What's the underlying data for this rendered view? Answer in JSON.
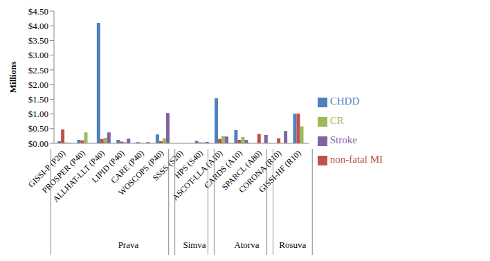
{
  "chart_data": {
    "type": "bar",
    "y_label": "Millions",
    "categories": [
      "GISSI-P (P20)",
      "PROSPER (P40)",
      "ALLHAT-LLT (P40)",
      "LIPID (P40)",
      "CARE (P40)",
      "WOSCOPS (P40)",
      "SSSS (S20)",
      "HPS (S40)",
      "ASCOT-LLA (A10)",
      "CARDS (A10)",
      "SPARCL (A80)",
      "CORONA (R10)",
      "GISSI-HF (R10)"
    ],
    "groups": [
      {
        "label": "Prava",
        "start": 0,
        "end": 5
      },
      {
        "label": "Simva",
        "start": 6,
        "end": 7
      },
      {
        "label": "Atorva",
        "start": 8,
        "end": 10
      },
      {
        "label": "Rosuva",
        "start": 11,
        "end": 12
      }
    ],
    "series": [
      {
        "name": "CHDD",
        "color": "#4F81BD",
        "values": [
          0.07,
          0.12,
          4.1,
          0.12,
          0.04,
          0.3,
          null,
          0.08,
          1.53,
          0.45,
          null,
          null,
          1.01
        ]
      },
      {
        "name": "non-fatal MI",
        "color": "#C0504D",
        "values": [
          0.47,
          0.1,
          0.15,
          0.06,
          0.01,
          0.07,
          null,
          0.03,
          0.15,
          0.12,
          0.32,
          0.17,
          1.01
        ]
      },
      {
        "name": "CR",
        "color": "#9BBB59",
        "values": [
          0.03,
          0.37,
          0.19,
          0.04,
          0.01,
          0.17,
          null,
          0.03,
          0.25,
          0.21,
          null,
          null,
          0.58
        ]
      },
      {
        "name": "Stroke",
        "color": "#8064A2",
        "values": [
          0.01,
          null,
          0.37,
          0.16,
          0.04,
          1.03,
          null,
          0.05,
          0.23,
          0.12,
          0.28,
          0.42,
          null
        ]
      }
    ],
    "ylim": [
      0,
      4.5
    ],
    "yticks": [
      {
        "value": 0,
        "label": "$0.00"
      },
      {
        "value": 0.5,
        "label": "$0.50"
      },
      {
        "value": 1,
        "label": "$1.00"
      },
      {
        "value": 1.5,
        "label": "$1.50"
      },
      {
        "value": 2,
        "label": "$2.00"
      },
      {
        "value": 2.5,
        "label": "$2.50"
      },
      {
        "value": 3,
        "label": "$3.00"
      },
      {
        "value": 3.5,
        "label": "$3.50"
      },
      {
        "value": 4,
        "label": "$4.00"
      },
      {
        "value": 4.5,
        "label": "$4.50"
      }
    ],
    "grid": false,
    "legend": "right"
  }
}
